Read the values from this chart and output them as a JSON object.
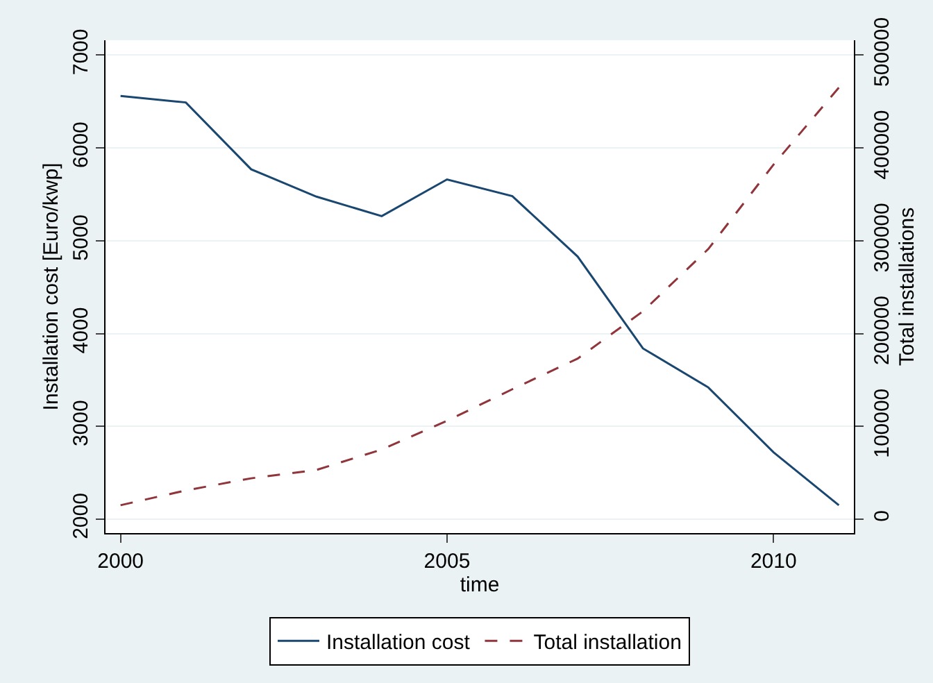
{
  "chart_data": {
    "type": "line",
    "xlabel": "time",
    "ylabel": "Installation cost [Euro/kwp]",
    "y2label": "Total installations",
    "x": [
      2000,
      2001,
      2002,
      2003,
      2004,
      2005,
      2006,
      2007,
      2008,
      2009,
      2010,
      2011
    ],
    "series": [
      {
        "name": "Installation cost",
        "color": "#1a476f",
        "line_style": "solid",
        "values": [
          6560,
          6490,
          5770,
          5475,
          5265,
          5660,
          5480,
          4830,
          3840,
          3420,
          2720,
          2150
        ]
      },
      {
        "name": "Total installation",
        "color": "#90353b",
        "line_style": "dashed",
        "axis": "y2",
        "values": [
          15000,
          31000,
          44000,
          53000,
          75000,
          106000,
          140000,
          173000,
          224000,
          291000,
          382000,
          465000
        ]
      }
    ],
    "xlim": [
      1999.77,
      2011.23
    ],
    "xticks": [
      2000,
      2005,
      2010
    ],
    "ylim": [
      1850,
      7160
    ],
    "yticks": [
      2000,
      3000,
      4000,
      5000,
      6000,
      7000
    ],
    "y2lim": [
      -15000,
      516000
    ],
    "y2ticks": [
      0,
      100000,
      200000,
      300000,
      400000,
      500000
    ],
    "grid": "y",
    "legend": "bottom",
    "marker": "none"
  }
}
